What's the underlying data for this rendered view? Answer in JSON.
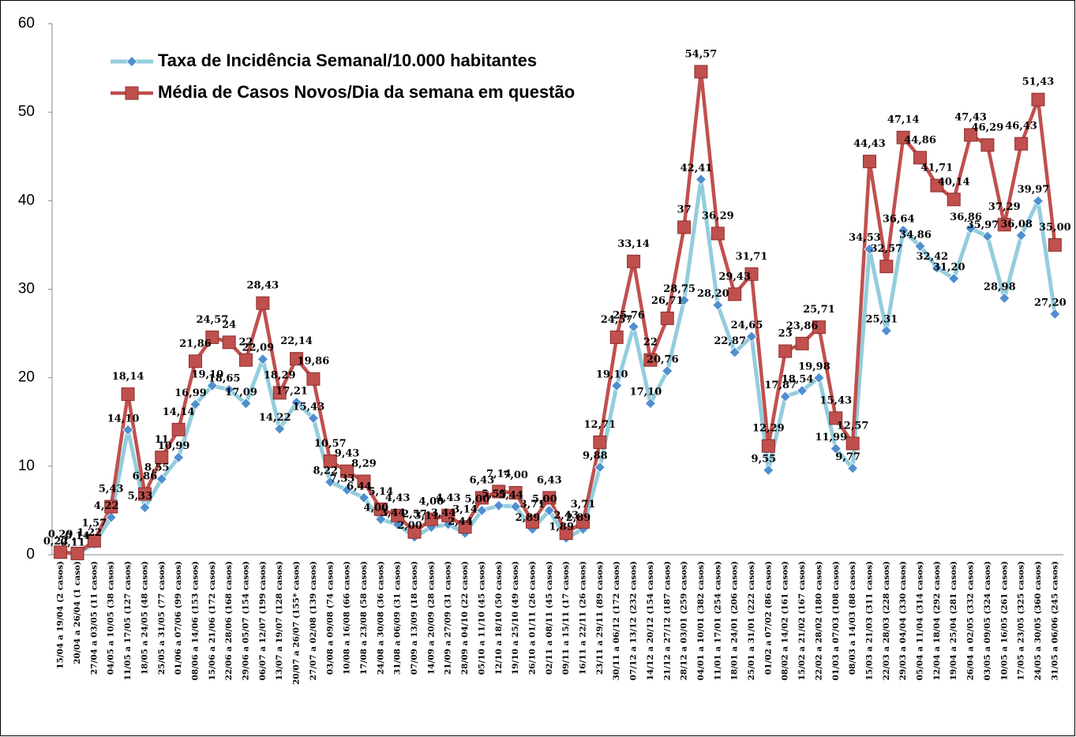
{
  "chart_data": {
    "type": "line",
    "categories": [
      "15/04 a 19/04 (2 casos)",
      "20/04 a 26/04 (1 caso)",
      "27/04 a 03/05 (11 casos)",
      "04/05 a 10/05 (38 casos)",
      "11/05 a 17/05 (127 casos)",
      "18/05 a 24/05 (48 casos)",
      "25/05 a 31/05 (77 casos)",
      "01/06 a 07/06 (99 casos)",
      "08/06 a 14/06 (153 casos)",
      "15/06 a 21/06 (172 casos)",
      "22/06 a 28/06 (168 casos)",
      "29/06 a 05/07 (154 casos)",
      "06/07 a 12/07 (199 casos)",
      "13/07 a 19/07 (128 casos)",
      "20/07 a 26/07 (155* casos)",
      "27/07 a 02/08 (139 casos)",
      "03/08 a 09/08 (74 casos)",
      "10/08 a 16/08 (66 casos)",
      "17/08 a 23/08 (58 casos)",
      "24/08 a 30/08 (36 casos)",
      "31/08 a 06/09 (31 casos)",
      "07/09 a 13/09 (18 casos)",
      "14/09 a 20/09 (28 casos)",
      "21/09 a 27/09 (31 casos)",
      "28/09 a 04/10 (22 casos)",
      "05/10 a 11/10 (45 casos)",
      "12/10 a 18/10 (50 casos)",
      "19/10 a 25/10 (49 casos)",
      "26/10 a 01/11 (26 casos)",
      "02/11 a 08/11 (45 casos)",
      "09/11 a 15/11 (17 casos)",
      "16/11 a 22/11 (26 casos)",
      "23/11 a 29/11 (89 casos)",
      "30/11 a 06/12 (172 casos)",
      "07/12 a 13/12 (232 casos)",
      "14/12 a 20/12 (154 casos)",
      "21/12 a 27/12 (187 casos)",
      "28/12 a 03/01 (259 casos)",
      "04/01 a 10/01 (382 casos)",
      "11/01 a 17/01 (254 casos)",
      "18/01 a 24/01 (206 casos)",
      "25/01 a 31/01 (222 casos)",
      "01/02 a 07/02 (86 casos)",
      "08/02 a 14/02 (161 casos)",
      "15/02 a 21/02 (167 casos)",
      "22/02 a 28/02 (180 casos)",
      "01/03 a 07/03 (108 casos)",
      "08/03 a 14/03 (88 casos)",
      "15/03 a 21/03 (311 casos)",
      "22/03 a 28/03 (228 casos)",
      "29/03 a 04/04 (330 casos)",
      "05/04 a 11/04 (314 casos)",
      "12/04 a 18/04 (292 casos)",
      "19/04 a 25/04 (281 casos)",
      "26/04 a 02/05 (332 casos)",
      "03/05 a 09/05 (324 casos)",
      "10/05 a 16/05 (261 casos)",
      "17/05 a 23/05 (325 casos)",
      "24/05 a 30/05 (360 casos)",
      "31/05 a 06/06 (245 casos)"
    ],
    "series": [
      {
        "name": "Taxa de Incidência Semanal/10.000 habitantes",
        "color": "#93cddd",
        "marker_color": "#4f8fcf",
        "marker": "diamond",
        "values": [
          0.22,
          0.11,
          1.22,
          4.22,
          14.1,
          5.33,
          8.55,
          10.99,
          16.99,
          19.1,
          18.65,
          17.09,
          22.09,
          14.22,
          17.21,
          15.43,
          8.22,
          7.33,
          6.44,
          4.0,
          3.44,
          2.0,
          3.11,
          3.44,
          2.44,
          5.0,
          5.55,
          5.44,
          2.89,
          5.0,
          1.89,
          2.89,
          9.88,
          19.1,
          25.76,
          17.1,
          20.76,
          28.75,
          42.41,
          28.2,
          22.87,
          24.65,
          9.55,
          17.87,
          18.54,
          19.98,
          11.99,
          9.77,
          34.53,
          25.31,
          36.64,
          34.86,
          32.42,
          31.2,
          36.86,
          35.97,
          28.98,
          36.08,
          39.97,
          27.2
        ],
        "value_labels": [
          "0,22",
          "0,11",
          "1,22",
          "4,22",
          "14,10",
          "5,33",
          "8,55",
          "10,99",
          "16,99",
          "19,10",
          "18,65",
          "17,09",
          "22,09",
          "14,22",
          "17,21",
          "15,43",
          "8,22",
          "7,33",
          "6,44",
          "4,00",
          "3,44",
          "2,00",
          "3,11",
          "3,44",
          "2,44",
          "5,00",
          "5,55",
          "5,44",
          "2,89",
          "5,00",
          "1,89",
          "2,89",
          "9,88",
          "19,10",
          "25,76",
          "17,10",
          "20,76",
          "28,75",
          "42,41",
          "28,20",
          "22,87",
          "24,65",
          "9,55",
          "17,87",
          "18,54",
          "19,98",
          "11,99",
          "9,77",
          "34,53",
          "25,31",
          "36,64",
          "34,86",
          "32,42",
          "31,20",
          "36,86",
          "35,97",
          "28,98",
          "36,08",
          "39,97",
          "27,20"
        ]
      },
      {
        "name": "Média de Casos Novos/Dia da semana em questão",
        "color": "#c0504d",
        "marker_color": "#c0504d",
        "marker": "square",
        "values": [
          0.29,
          0.14,
          1.57,
          5.43,
          18.14,
          6.86,
          11,
          14.14,
          21.86,
          24.57,
          24,
          22,
          28.43,
          18.29,
          22.14,
          19.86,
          10.57,
          9.43,
          8.29,
          5.14,
          4.43,
          2.57,
          4.0,
          4.43,
          3.14,
          6.43,
          7.14,
          7.0,
          3.71,
          6.43,
          2.43,
          3.71,
          12.71,
          24.57,
          33.14,
          22,
          26.71,
          37,
          54.57,
          36.29,
          29.43,
          31.71,
          12.29,
          23,
          23.86,
          25.71,
          15.43,
          12.57,
          44.43,
          32.57,
          47.14,
          44.86,
          41.71,
          40.14,
          47.43,
          46.29,
          37.29,
          46.43,
          51.43,
          35.0
        ],
        "value_labels": [
          "0,29",
          "0,14",
          "1,57",
          "5,43",
          "18,14",
          "6,86",
          "11",
          "14,14",
          "21,86",
          "24,57",
          "24",
          "22",
          "28,43",
          "18,29",
          "22,14",
          "19,86",
          "10,57",
          "9,43",
          "8,29",
          "5,14",
          "4,43",
          "2,57",
          "4,00",
          "4,43",
          "3,14",
          "6,43",
          "7,14",
          "7,00",
          "3,71",
          "6,43",
          "2,43",
          "3,71",
          "12,71",
          "24,57",
          "33,14",
          "22",
          "26,71",
          "37",
          "54,57",
          "36,29",
          "29,43",
          "31,71",
          "12,29",
          "23",
          "23,86",
          "25,71",
          "15,43",
          "12,57",
          "44,43",
          "32,57",
          "47,14",
          "44,86",
          "41,71",
          "40,14",
          "47,43",
          "46,29",
          "37,29",
          "46,43",
          "51,43",
          "35,00"
        ]
      }
    ],
    "ylim": [
      0,
      60
    ],
    "yticks": [
      0,
      10,
      20,
      30,
      40,
      50,
      60
    ],
    "grid": false,
    "legend": "upper left"
  }
}
